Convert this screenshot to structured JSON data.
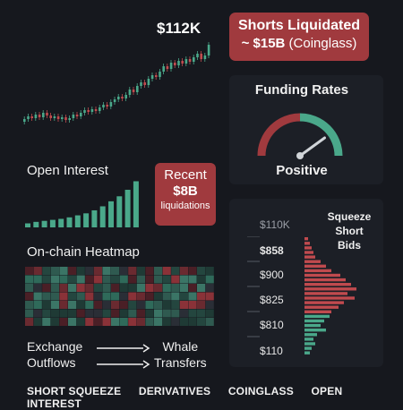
{
  "price_label": "$112K",
  "shorts": {
    "line1": "Shorts Liquidated",
    "amount": "~ $15B",
    "source": "(Coinglass)"
  },
  "funding": {
    "title": "Funding Rates",
    "status": "Positive",
    "needle_fraction": 0.8
  },
  "open_interest": {
    "title": "Open Interest",
    "bars": [
      0.08,
      0.11,
      0.13,
      0.15,
      0.17,
      0.2,
      0.24,
      0.28,
      0.34,
      0.42,
      0.52,
      0.62,
      0.75,
      0.92
    ]
  },
  "recent": {
    "line1": "Recent",
    "line2": "$8B",
    "line3": "liquidations"
  },
  "onchain": {
    "title": "On-chain Heatmap"
  },
  "squeeze": {
    "title_lines": [
      "Squeeze",
      "Short",
      "Bids"
    ],
    "price_levels": [
      "$110K",
      "$858",
      "$900",
      "$825",
      "$810",
      "$110"
    ]
  },
  "flows": {
    "exchange": [
      "Exchange",
      "Outflows"
    ],
    "whale": [
      "Whale",
      "Transfers"
    ]
  },
  "footer": [
    "SHORT SQUEEZE",
    "DERIVATIVES",
    "COINGLASS",
    "OPEN INTEREST"
  ],
  "colors": {
    "green": "#4aa88a",
    "red": "#c04a4e",
    "box_red": "#a03a3e"
  }
}
